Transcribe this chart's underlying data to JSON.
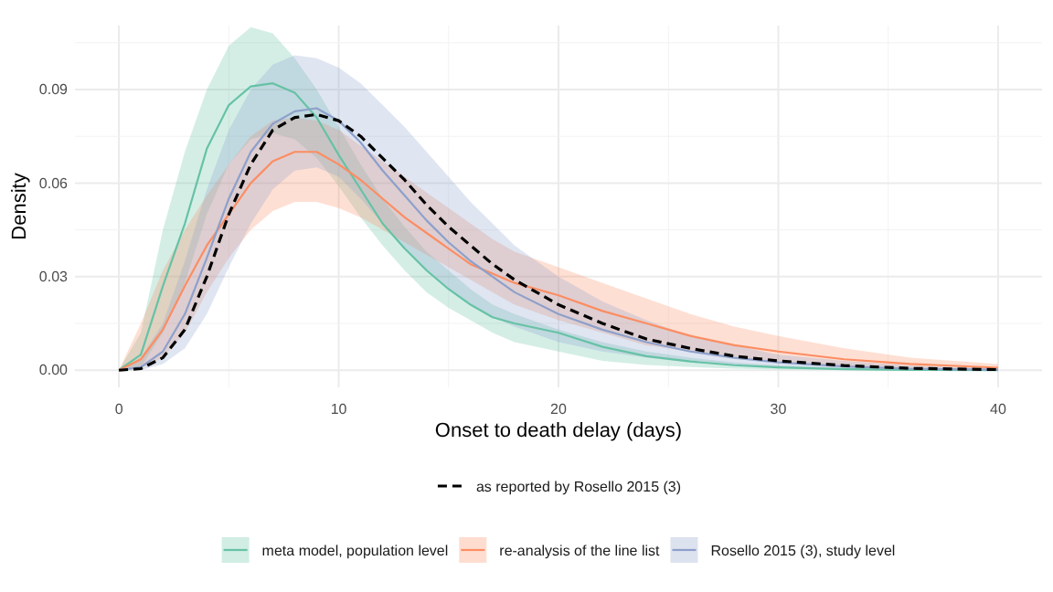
{
  "chart_data": {
    "type": "line",
    "xlabel": "Onset to death delay (days)",
    "ylabel": "Density",
    "x": [
      0,
      1,
      2,
      3,
      4,
      5,
      6,
      7,
      8,
      9,
      10,
      11,
      12,
      13,
      14,
      15,
      16,
      17,
      18,
      20,
      22,
      24,
      26,
      28,
      30,
      33,
      36,
      40
    ],
    "xlim": [
      -2,
      42
    ],
    "xticks": [
      0,
      10,
      20,
      30,
      40
    ],
    "ylim": [
      -0.0055,
      0.1105
    ],
    "yticks": [
      {
        "value": 0,
        "label": "0.00"
      },
      {
        "value": 0.03,
        "label": "0.03"
      },
      {
        "value": 0.06,
        "label": "0.06"
      },
      {
        "value": 0.09,
        "label": "0.09"
      }
    ],
    "grid": true,
    "legend": "bottom",
    "marker": "none",
    "series": [
      {
        "name": "meta model, population level",
        "color": "#66c2a5",
        "line_style": "solid",
        "values": [
          0,
          0.005,
          0.027,
          0.047,
          0.071,
          0.085,
          0.091,
          0.092,
          0.089,
          0.081,
          0.069,
          0.058,
          0.047,
          0.039,
          0.032,
          0.026,
          0.021,
          0.017,
          0.015,
          0.012,
          0.0075,
          0.0045,
          0.0028,
          0.0016,
          0.0009,
          0.0003,
          0.0001,
          0
        ],
        "lower": [
          0,
          0.001,
          0.012,
          0.028,
          0.05,
          0.066,
          0.074,
          0.076,
          0.074,
          0.068,
          0.059,
          0.049,
          0.04,
          0.032,
          0.025,
          0.02,
          0.016,
          0.012,
          0.009,
          0.006,
          0.003,
          0.0017,
          0.001,
          0.0005,
          0.0002,
          0.0001,
          0,
          0
        ],
        "upper": [
          0,
          0.012,
          0.045,
          0.07,
          0.09,
          0.104,
          0.11,
          0.108,
          0.1,
          0.09,
          0.078,
          0.066,
          0.055,
          0.046,
          0.038,
          0.032,
          0.026,
          0.021,
          0.018,
          0.013,
          0.009,
          0.006,
          0.004,
          0.0025,
          0.0015,
          0.0008,
          0.0004,
          0.0002
        ]
      },
      {
        "name": "re-analysis of the line list",
        "color": "#fc8d62",
        "line_style": "solid",
        "values": [
          0,
          0.0035,
          0.013,
          0.027,
          0.04,
          0.05,
          0.06,
          0.067,
          0.07,
          0.07,
          0.066,
          0.061,
          0.055,
          0.049,
          0.044,
          0.039,
          0.034,
          0.031,
          0.028,
          0.024,
          0.019,
          0.015,
          0.011,
          0.008,
          0.006,
          0.0035,
          0.002,
          0.0008
        ],
        "lower": [
          0,
          0.0005,
          0.004,
          0.012,
          0.025,
          0.036,
          0.045,
          0.051,
          0.054,
          0.054,
          0.052,
          0.049,
          0.045,
          0.041,
          0.037,
          0.033,
          0.029,
          0.025,
          0.021,
          0.016,
          0.012,
          0.008,
          0.006,
          0.004,
          0.0025,
          0.0012,
          0.0005,
          0.0002
        ],
        "upper": [
          0,
          0.015,
          0.032,
          0.045,
          0.056,
          0.066,
          0.075,
          0.08,
          0.081,
          0.08,
          0.077,
          0.072,
          0.067,
          0.062,
          0.057,
          0.052,
          0.047,
          0.042,
          0.038,
          0.033,
          0.028,
          0.023,
          0.018,
          0.014,
          0.011,
          0.007,
          0.004,
          0.002
        ]
      },
      {
        "name": "Rosello 2015 (3), study level",
        "color": "#8da0cb",
        "line_style": "solid",
        "values": [
          0,
          0.001,
          0.006,
          0.018,
          0.036,
          0.055,
          0.07,
          0.079,
          0.083,
          0.084,
          0.08,
          0.073,
          0.064,
          0.056,
          0.048,
          0.041,
          0.035,
          0.03,
          0.025,
          0.018,
          0.013,
          0.009,
          0.006,
          0.004,
          0.0025,
          0.0012,
          0.0005,
          0.0002
        ],
        "lower": [
          0,
          0,
          0.002,
          0.007,
          0.018,
          0.033,
          0.047,
          0.058,
          0.064,
          0.065,
          0.062,
          0.055,
          0.047,
          0.039,
          0.032,
          0.026,
          0.021,
          0.017,
          0.014,
          0.009,
          0.006,
          0.004,
          0.0025,
          0.0015,
          0.001,
          0.0005,
          0.0002,
          0
        ],
        "upper": [
          0,
          0.004,
          0.015,
          0.035,
          0.058,
          0.077,
          0.09,
          0.098,
          0.101,
          0.1,
          0.097,
          0.092,
          0.085,
          0.078,
          0.07,
          0.062,
          0.054,
          0.047,
          0.04,
          0.03,
          0.022,
          0.016,
          0.011,
          0.008,
          0.005,
          0.003,
          0.0015,
          0.0005
        ]
      },
      {
        "name": "as reported by Rosello 2015 (3)",
        "color": "#000000",
        "line_style": "dashed",
        "values": [
          0,
          0.0005,
          0.004,
          0.013,
          0.03,
          0.05,
          0.066,
          0.077,
          0.081,
          0.082,
          0.08,
          0.075,
          0.068,
          0.061,
          0.053,
          0.046,
          0.04,
          0.034,
          0.029,
          0.021,
          0.015,
          0.01,
          0.007,
          0.0045,
          0.003,
          0.0015,
          0.0006,
          0.0002
        ]
      }
    ]
  }
}
